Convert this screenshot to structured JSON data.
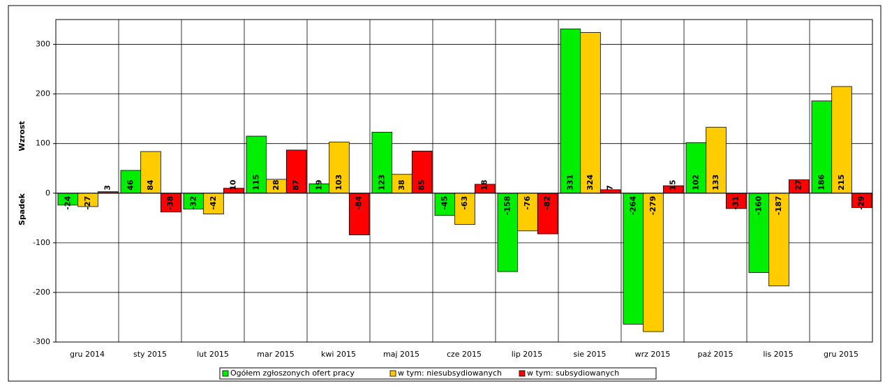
{
  "chart_data": {
    "type": "bar",
    "y_label_top": "Wzrost",
    "y_label_bottom": "Spadek",
    "categories": [
      "gru 2014",
      "sty 2015",
      "lut 2015",
      "mar 2015",
      "kwi 2015",
      "maj 2015",
      "cze 2015",
      "lip 2015",
      "sie 2015",
      "wrz 2015",
      "paź 2015",
      "lis 2015",
      "gru 2015"
    ],
    "series": [
      {
        "name": "Ogółem zgłoszonych ofert pracy",
        "color": "#00ee00",
        "values": [
          -24,
          46,
          -32,
          115,
          19,
          123,
          -45,
          -158,
          331,
          -264,
          102,
          -160,
          186
        ]
      },
      {
        "name": "w tym: niesubsydiowanych",
        "color": "#ffcc00",
        "values": [
          -27,
          84,
          -42,
          28,
          103,
          38,
          -63,
          -76,
          324,
          -279,
          133,
          -187,
          215
        ]
      },
      {
        "name": "w tym: subsydiowanych",
        "color": "#ff0000",
        "values": [
          3,
          -38,
          10,
          87,
          -84,
          85,
          18,
          -82,
          7,
          15,
          -31,
          27,
          -29
        ]
      }
    ],
    "ylim": [
      -300,
      350
    ],
    "yticks": [
      -300,
      -200,
      -100,
      0,
      100,
      200,
      300
    ],
    "grid": true,
    "legend": "bottom"
  }
}
